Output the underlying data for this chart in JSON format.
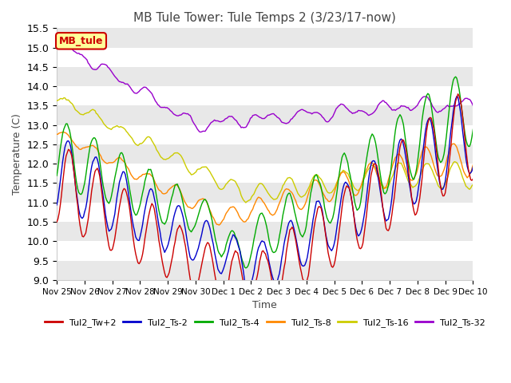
{
  "title": "MB Tule Tower: Tule Temps 2 (3/23/17-now)",
  "ylabel": "Temperature (C)",
  "xlabel": "Time",
  "ylim": [
    9.0,
    15.5
  ],
  "yticks": [
    9.0,
    9.5,
    10.0,
    10.5,
    11.0,
    11.5,
    12.0,
    12.5,
    13.0,
    13.5,
    14.0,
    14.5,
    15.0,
    15.5
  ],
  "line_colors": {
    "Tul2_Tw+2": "#cc0000",
    "Tul2_Ts-2": "#0000cc",
    "Tul2_Ts-4": "#00aa00",
    "Tul2_Ts-8": "#ff8800",
    "Tul2_Ts-16": "#cccc00",
    "Tul2_Ts-32": "#9900cc"
  },
  "annotation_box": "MB_tule",
  "annotation_box_facecolor": "#ffff99",
  "annotation_box_edgecolor": "#cc0000",
  "annotation_box_textcolor": "#cc0000",
  "background_color": "#ffffff",
  "band_colors": [
    "#e8e8e8",
    "#ffffff"
  ],
  "tick_labels": [
    "Nov 25",
    "Nov 26",
    "Nov 27",
    "Nov 28",
    "Nov 29",
    "Nov 30",
    "Dec 1",
    "Dec 2",
    "Dec 3",
    "Dec 4",
    "Dec 5",
    "Dec 6",
    "Dec 7",
    "Dec 8",
    "Dec 9",
    "Dec 10"
  ]
}
